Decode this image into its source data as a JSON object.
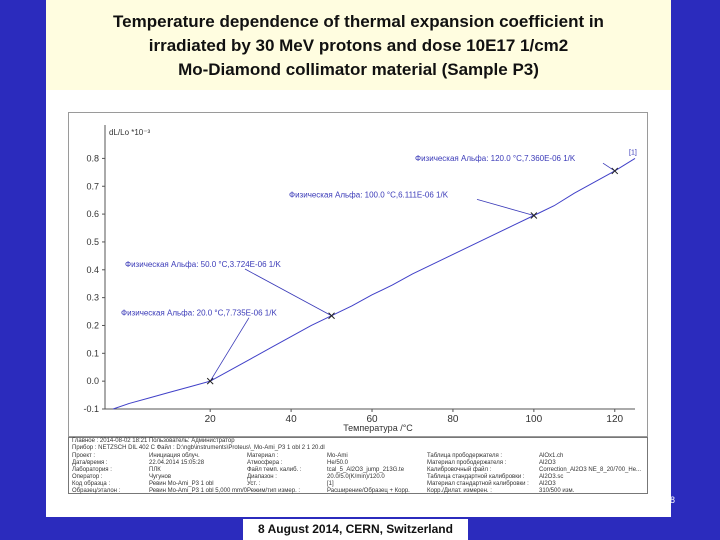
{
  "title": {
    "lines": [
      "Temperature dependence of thermal expansion coefficient in",
      "irradiated by 30 MeV protons and dose 10E17 1/cm2",
      "Mo-Diamond collimator material (Sample P3)"
    ]
  },
  "footer": "8 August 2014, CERN, Switzerland",
  "page_number": "8",
  "chart_data": {
    "type": "line",
    "ylabel": "dL/Lo *10⁻³",
    "xlabel": "Температура /°C",
    "xlim": [
      -6,
      125
    ],
    "ylim": [
      -0.1,
      0.92
    ],
    "x_ticks": [
      20,
      40,
      60,
      80,
      100,
      120
    ],
    "y_ticks": [
      -0.1,
      0.0,
      0.1,
      0.2,
      0.3,
      0.4,
      0.5,
      0.6,
      0.7,
      0.8
    ],
    "x_tick_labels": [
      "20",
      "40",
      "60",
      "80",
      "100",
      "120"
    ],
    "y_tick_labels": [
      "-0.1",
      "0.0",
      "0.1",
      "0.2",
      "0.3",
      "0.4",
      "0.5",
      "0.6",
      "0.7",
      "0.8"
    ],
    "series": [
      {
        "x": [
          -4,
          0,
          5,
          10,
          15,
          20,
          25,
          30,
          35,
          40,
          45,
          50,
          55,
          60,
          65,
          70,
          75,
          80,
          85,
          90,
          95,
          100,
          105,
          110,
          115,
          120,
          125
        ],
        "y": [
          -0.1,
          -0.08,
          -0.06,
          -0.04,
          -0.02,
          0.0,
          0.04,
          0.08,
          0.12,
          0.16,
          0.2,
          0.235,
          0.27,
          0.31,
          0.345,
          0.385,
          0.42,
          0.455,
          0.49,
          0.525,
          0.56,
          0.595,
          0.63,
          0.675,
          0.715,
          0.755,
          0.8
        ]
      }
    ],
    "annotations": [
      {
        "text": "Физическая Альфа: 20.0 °C,7.735E-06 1/K",
        "x": 20,
        "y": 0.0
      },
      {
        "text": "Физическая Альфа: 50.0 °C,3.724E-06 1/K",
        "x": 50,
        "y": 0.235
      },
      {
        "text": "Физическая Альфа: 100.0 °C,6.111E-06 1/K",
        "x": 100,
        "y": 0.595
      },
      {
        "text": "Физическая Альфа: 120.0 °C,7.360E-06 1/K",
        "x": 120,
        "y": 0.755
      }
    ],
    "curve_label": "[1]"
  },
  "info_table": {
    "header_lines": [
      "Главное : 2014-08-02 18:21  Пользователь: Администратор",
      "Прибор : NETZSCH DIL 402 C   Файл : D:\\ngb\\instruments\\Proteus\\_Mo-Ami_P3 1 obl 2 1 20.dl"
    ],
    "rows": [
      [
        "Проект :",
        "Инициация облуч.",
        "Материал :",
        "Mo-Ami",
        "Таблица прободержателя :",
        "AlOx1.ch"
      ],
      [
        "Дата/время :",
        "22.04.2014 15:05:28",
        "Атмосфера :",
        "He/50.0",
        "Материал прободержателя :",
        "Al2O3"
      ],
      [
        "Лаборатория :",
        "ПЛК",
        "Файл темп. калиб. :",
        "tcal_5_Al2O3_jump_213G.te",
        "Калибровочный файл :",
        "Correction_Al2O3 NE_8_20/700_He..."
      ],
      [
        "Оператор :",
        "Чугунов",
        "Диапазон :",
        "20.0/5.0(K/min)/120.0",
        "Таблица стандартной калибровки :",
        "Al2O3.sc"
      ],
      [
        "Код образца :",
        "Ревин Mo-Ami_P3 1 obl",
        "Уст. :",
        "[1]",
        "Материал стандартной калибровки :",
        "Al2O3"
      ],
      [
        "Образец/эталон :",
        "Ревин Mo-Ami_P3 1 obl 5,000 mm/0",
        "Режим/тип измер. :",
        "Расширение/Образец + Корр.",
        "Корр./Дилат. измерен. :",
        "310/500 изм."
      ]
    ]
  },
  "colors": {
    "background": "#2b2bbd",
    "title_bg": "#fffde0",
    "curve": "#4040c8",
    "annotation": "#3a3ab8"
  }
}
